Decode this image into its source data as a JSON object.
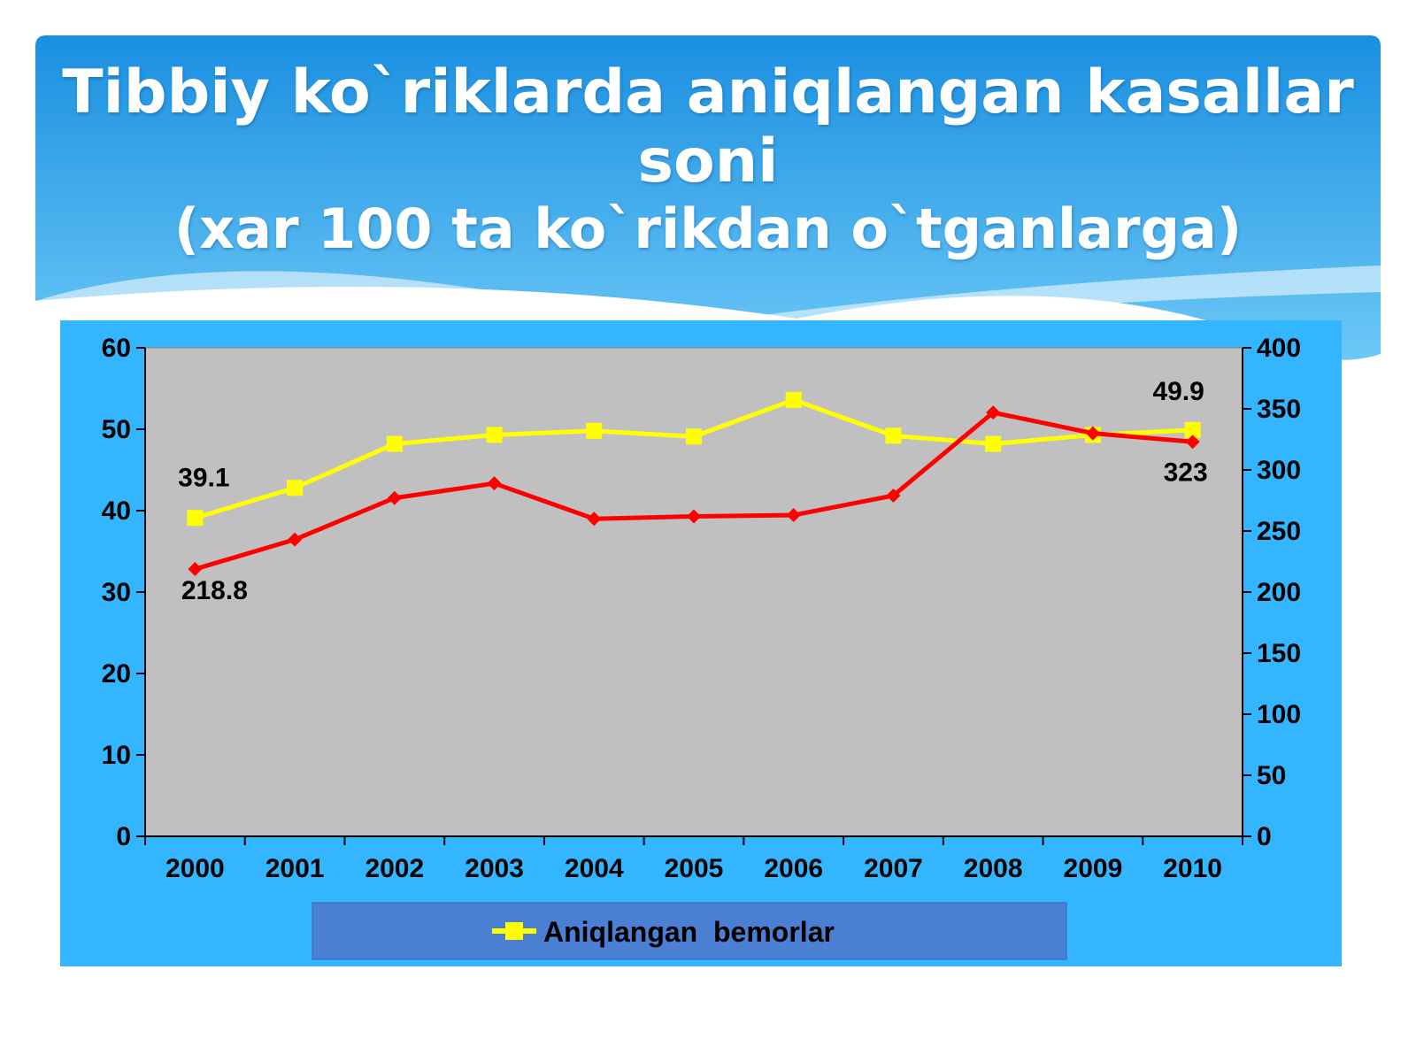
{
  "slide": {
    "title_line1": "Tibbiy ko`riklarda aniqlangan kasallar soni",
    "title_line2": "(xar 100 ta ko`rikdan o`tganlarga)"
  },
  "colors": {
    "header_top": "#1a8fe0",
    "header_bottom": "#5ec0f5",
    "chart_panel": "#33b5ff",
    "plot_area": "#c0c0c0",
    "legend_box": "#4a7fd4",
    "series_yellow": "#ffff00",
    "series_red": "#ff0000"
  },
  "chart_data": {
    "type": "line",
    "title": "",
    "categories": [
      "2000",
      "2001",
      "2002",
      "2003",
      "2004",
      "2005",
      "2006",
      "2007",
      "2008",
      "2009",
      "2010"
    ],
    "y_left": {
      "min": 0,
      "max": 60,
      "ticks": [
        "0",
        "10",
        "20",
        "30",
        "40",
        "50",
        "60"
      ]
    },
    "y_right": {
      "min": 0,
      "max": 400,
      "ticks": [
        "0",
        "50",
        "100",
        "150",
        "200",
        "250",
        "300",
        "350",
        "400"
      ]
    },
    "grid": false,
    "legend_position": "bottom",
    "series": [
      {
        "name": "Aniqlangan  bemorlar",
        "axis": "left",
        "color": "#ffff00",
        "marker": "square",
        "values": [
          39.1,
          42.8,
          48.2,
          49.3,
          49.8,
          49.1,
          53.6,
          49.2,
          48.2,
          49.3,
          49.9
        ]
      },
      {
        "axis": "right",
        "color": "#ff0000",
        "marker": "diamond",
        "values": [
          218.8,
          243,
          277,
          289,
          260,
          262,
          263,
          279,
          347,
          330,
          323
        ]
      }
    ],
    "annotations": [
      {
        "series": 0,
        "index": 0,
        "text": "39.1"
      },
      {
        "series": 0,
        "index": 10,
        "text": "49.9"
      },
      {
        "series": 1,
        "index": 0,
        "text": "218.8"
      },
      {
        "series": 1,
        "index": 10,
        "text": "323"
      }
    ]
  }
}
